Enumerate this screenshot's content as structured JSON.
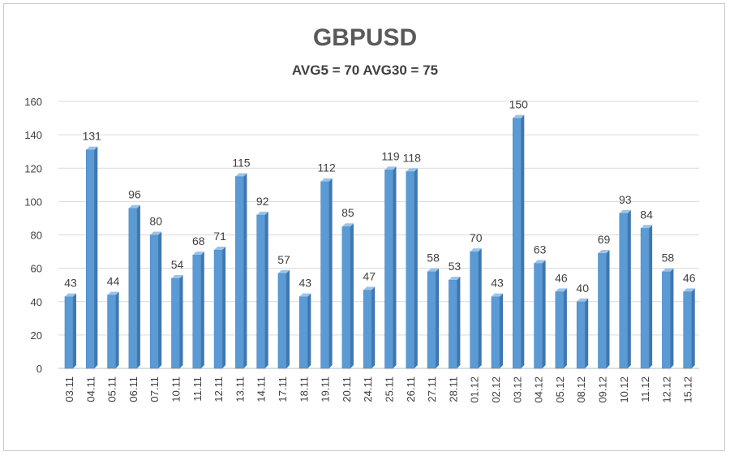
{
  "chart_data": {
    "type": "bar",
    "title": "GBPUSD",
    "subtitle": "AVG5 = 70 AVG30 = 75",
    "categories": [
      "03.11",
      "04.11",
      "05.11",
      "06.11",
      "07.11",
      "10.11",
      "11.11",
      "12.11",
      "13.11",
      "14.11",
      "17.11",
      "18.11",
      "19.11",
      "20.11",
      "24.11",
      "25.11",
      "26.11",
      "27.11",
      "28.11",
      "01.12",
      "02.12",
      "03.12",
      "04.12",
      "05.12",
      "08.12",
      "09.12",
      "10.12",
      "11.12",
      "12.12",
      "15.12"
    ],
    "values": [
      43,
      131,
      44,
      96,
      80,
      54,
      68,
      71,
      115,
      92,
      57,
      43,
      112,
      85,
      47,
      119,
      118,
      58,
      53,
      70,
      43,
      150,
      63,
      46,
      40,
      69,
      93,
      84,
      58,
      46
    ],
    "ylim": [
      0,
      160
    ],
    "yticks": [
      0,
      20,
      40,
      60,
      80,
      100,
      120,
      140,
      160
    ],
    "grid": true,
    "legend": "none",
    "bar_color": "#5b9bd5",
    "bar_side_color": "#3f77b0",
    "bar_top_color": "#9cc3e8"
  }
}
